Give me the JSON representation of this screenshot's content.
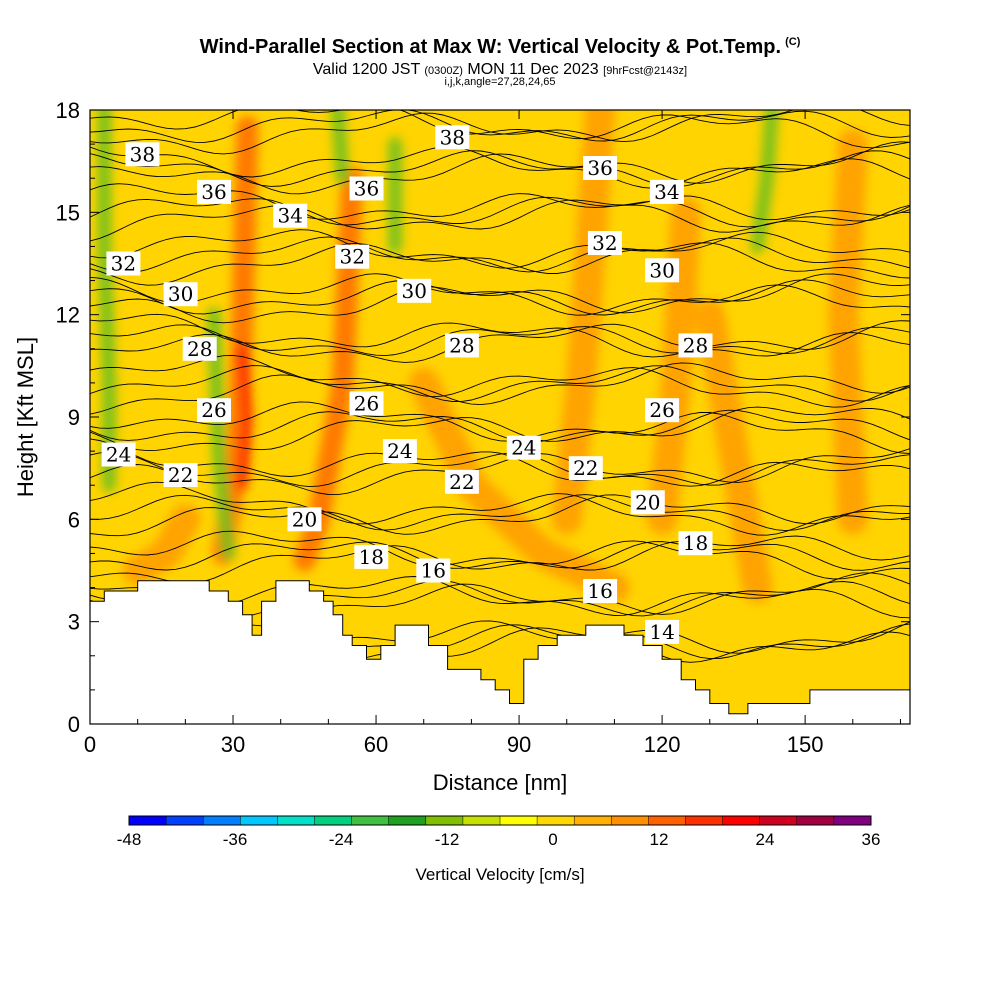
{
  "title": {
    "main": "Wind-Parallel Section at Max W: Vertical Velocity & Pot.Temp.",
    "mark": "(C)",
    "valid_label": "Valid 1200 JST",
    "zulu": "(0300Z)",
    "date": "MON 11 Dec 2023",
    "forecast": "[9hrFcst@2143z]",
    "index_line": "i,j,k,angle=27,28,24,65"
  },
  "chart_data": {
    "type": "heatmap",
    "xlabel": "Distance [nm]",
    "ylabel": "Height [Kft MSL]",
    "xlim": [
      0,
      172
    ],
    "ylim": [
      0,
      18
    ],
    "x_ticks": [
      0,
      30,
      60,
      90,
      120,
      150
    ],
    "y_ticks": [
      0,
      3,
      6,
      9,
      12,
      15,
      18
    ],
    "colorbar": {
      "label": "Vertical Velocity [cm/s]",
      "min": -48,
      "max": 36,
      "step": 6,
      "tick_labels": [
        -48,
        -36,
        -24,
        -12,
        0,
        12,
        24,
        36
      ],
      "colors": [
        "#0000ff",
        "#0040ff",
        "#0080ff",
        "#00c8ff",
        "#00e0c8",
        "#00d080",
        "#40c040",
        "#20a020",
        "#80c000",
        "#c8e000",
        "#ffff00",
        "#ffd800",
        "#ffb000",
        "#ff9000",
        "#ff6000",
        "#ff3000",
        "#ff0000",
        "#d00020",
        "#a00040",
        "#800080"
      ]
    },
    "theta_labels": [
      {
        "value": "38",
        "x": 11,
        "y": 16.7
      },
      {
        "value": "38",
        "x": 76,
        "y": 17.2
      },
      {
        "value": "36",
        "x": 26,
        "y": 15.6
      },
      {
        "value": "36",
        "x": 58,
        "y": 15.7
      },
      {
        "value": "36",
        "x": 107,
        "y": 16.3
      },
      {
        "value": "34",
        "x": 42,
        "y": 14.9
      },
      {
        "value": "34",
        "x": 121,
        "y": 15.6
      },
      {
        "value": "32",
        "x": 7,
        "y": 13.5
      },
      {
        "value": "32",
        "x": 55,
        "y": 13.7
      },
      {
        "value": "32",
        "x": 108,
        "y": 14.1
      },
      {
        "value": "30",
        "x": 19,
        "y": 12.6
      },
      {
        "value": "30",
        "x": 68,
        "y": 12.7
      },
      {
        "value": "30",
        "x": 120,
        "y": 13.3
      },
      {
        "value": "28",
        "x": 23,
        "y": 11.0
      },
      {
        "value": "28",
        "x": 78,
        "y": 11.1
      },
      {
        "value": "28",
        "x": 127,
        "y": 11.1
      },
      {
        "value": "26",
        "x": 26,
        "y": 9.2
      },
      {
        "value": "26",
        "x": 58,
        "y": 9.4
      },
      {
        "value": "26",
        "x": 120,
        "y": 9.2
      },
      {
        "value": "24",
        "x": 6,
        "y": 7.9
      },
      {
        "value": "24",
        "x": 65,
        "y": 8.0
      },
      {
        "value": "24",
        "x": 91,
        "y": 8.1
      },
      {
        "value": "22",
        "x": 19,
        "y": 7.3
      },
      {
        "value": "22",
        "x": 78,
        "y": 7.1
      },
      {
        "value": "22",
        "x": 104,
        "y": 7.5
      },
      {
        "value": "20",
        "x": 45,
        "y": 6.0
      },
      {
        "value": "20",
        "x": 117,
        "y": 6.5
      },
      {
        "value": "18",
        "x": 59,
        "y": 4.9
      },
      {
        "value": "18",
        "x": 127,
        "y": 5.3
      },
      {
        "value": "16",
        "x": 72,
        "y": 4.5
      },
      {
        "value": "16",
        "x": 107,
        "y": 3.9
      },
      {
        "value": "14",
        "x": 120,
        "y": 2.7
      }
    ],
    "terrain_profile": [
      [
        0,
        3.6
      ],
      [
        3,
        3.6
      ],
      [
        3,
        3.9
      ],
      [
        10,
        3.9
      ],
      [
        10,
        4.2
      ],
      [
        25,
        4.2
      ],
      [
        25,
        3.9
      ],
      [
        29,
        3.9
      ],
      [
        29,
        3.6
      ],
      [
        32,
        3.6
      ],
      [
        32,
        3.2
      ],
      [
        34,
        3.2
      ],
      [
        34,
        2.6
      ],
      [
        36,
        2.6
      ],
      [
        36,
        3.6
      ],
      [
        39,
        3.6
      ],
      [
        39,
        4.2
      ],
      [
        46,
        4.2
      ],
      [
        46,
        3.9
      ],
      [
        49,
        3.9
      ],
      [
        49,
        3.6
      ],
      [
        51,
        3.6
      ],
      [
        51,
        3.2
      ],
      [
        53,
        3.2
      ],
      [
        53,
        2.6
      ],
      [
        55,
        2.6
      ],
      [
        55,
        2.3
      ],
      [
        58,
        2.3
      ],
      [
        58,
        1.9
      ],
      [
        61,
        1.9
      ],
      [
        61,
        2.3
      ],
      [
        64,
        2.3
      ],
      [
        64,
        2.9
      ],
      [
        71,
        2.9
      ],
      [
        71,
        2.3
      ],
      [
        75,
        2.3
      ],
      [
        75,
        1.6
      ],
      [
        82,
        1.6
      ],
      [
        82,
        1.3
      ],
      [
        85,
        1.3
      ],
      [
        85,
        1.0
      ],
      [
        88,
        1.0
      ],
      [
        88,
        0.6
      ],
      [
        91,
        0.6
      ],
      [
        91,
        1.9
      ],
      [
        94,
        1.9
      ],
      [
        94,
        2.3
      ],
      [
        98,
        2.3
      ],
      [
        98,
        2.6
      ],
      [
        104,
        2.6
      ],
      [
        104,
        2.9
      ],
      [
        112,
        2.9
      ],
      [
        112,
        2.6
      ],
      [
        116,
        2.6
      ],
      [
        116,
        2.3
      ],
      [
        120,
        2.3
      ],
      [
        120,
        1.9
      ],
      [
        124,
        1.9
      ],
      [
        124,
        1.3
      ],
      [
        127,
        1.3
      ],
      [
        127,
        1.0
      ],
      [
        130,
        1.0
      ],
      [
        130,
        0.6
      ],
      [
        134,
        0.6
      ],
      [
        134,
        0.3
      ],
      [
        138,
        0.3
      ],
      [
        138,
        0.6
      ],
      [
        151,
        0.6
      ],
      [
        151,
        1.0
      ],
      [
        172,
        1.0
      ]
    ],
    "grid": false,
    "legend": "bottom-colorbar"
  }
}
